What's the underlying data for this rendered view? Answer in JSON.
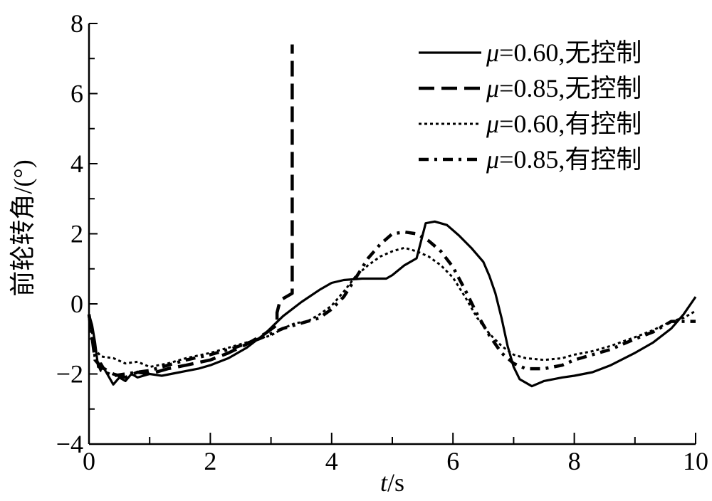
{
  "chart_data": {
    "type": "line",
    "title": "",
    "xlabel_var": "t",
    "xlabel_unit": "/s",
    "ylabel": "前轮转角/(°)",
    "xlim": [
      0,
      10
    ],
    "ylim": [
      -4,
      8
    ],
    "x_ticks": [
      0,
      2,
      4,
      6,
      8,
      10
    ],
    "y_ticks": [
      -4,
      -2,
      0,
      2,
      4,
      6,
      8
    ],
    "x_tick_labels": [
      "0",
      "2",
      "4",
      "6",
      "8",
      "10"
    ],
    "y_tick_labels": [
      "−4",
      "−2",
      "0",
      "2",
      "4",
      "6",
      "8"
    ],
    "grid": false,
    "legend_position": "top-right",
    "series": [
      {
        "name_sym": "μ",
        "name_rest": "=0.60,无控制",
        "style": "solid",
        "points": [
          [
            0,
            -0.3
          ],
          [
            0.05,
            -0.6
          ],
          [
            0.1,
            -1.1
          ],
          [
            0.15,
            -1.8
          ],
          [
            0.2,
            -1.7
          ],
          [
            0.3,
            -2.0
          ],
          [
            0.4,
            -2.3
          ],
          [
            0.5,
            -2.1
          ],
          [
            0.6,
            -2.2
          ],
          [
            0.7,
            -2.0
          ],
          [
            0.8,
            -2.1
          ],
          [
            1.0,
            -2.0
          ],
          [
            1.2,
            -2.05
          ],
          [
            1.5,
            -1.95
          ],
          [
            1.8,
            -1.85
          ],
          [
            2.0,
            -1.75
          ],
          [
            2.3,
            -1.55
          ],
          [
            2.6,
            -1.25
          ],
          [
            2.9,
            -0.85
          ],
          [
            3.2,
            -0.35
          ],
          [
            3.5,
            0.05
          ],
          [
            3.8,
            0.4
          ],
          [
            4.0,
            0.6
          ],
          [
            4.2,
            0.68
          ],
          [
            4.5,
            0.72
          ],
          [
            4.9,
            0.72
          ],
          [
            5.0,
            0.82
          ],
          [
            5.2,
            1.1
          ],
          [
            5.4,
            1.3
          ],
          [
            5.55,
            2.3
          ],
          [
            5.7,
            2.35
          ],
          [
            5.9,
            2.25
          ],
          [
            6.1,
            1.95
          ],
          [
            6.3,
            1.6
          ],
          [
            6.5,
            1.2
          ],
          [
            6.6,
            0.8
          ],
          [
            6.7,
            0.3
          ],
          [
            6.8,
            -0.4
          ],
          [
            6.9,
            -1.2
          ],
          [
            7.0,
            -1.8
          ],
          [
            7.1,
            -2.15
          ],
          [
            7.3,
            -2.35
          ],
          [
            7.5,
            -2.2
          ],
          [
            7.8,
            -2.1
          ],
          [
            8.0,
            -2.05
          ],
          [
            8.3,
            -1.95
          ],
          [
            8.6,
            -1.75
          ],
          [
            9.0,
            -1.4
          ],
          [
            9.3,
            -1.1
          ],
          [
            9.6,
            -0.7
          ],
          [
            9.8,
            -0.3
          ],
          [
            10.0,
            0.2
          ]
        ]
      },
      {
        "name_sym": "μ",
        "name_rest": "=0.85,无控制",
        "style": "dashed",
        "points": [
          [
            0,
            -0.3
          ],
          [
            0.1,
            -1.6
          ],
          [
            0.2,
            -1.8
          ],
          [
            0.4,
            -2.0
          ],
          [
            0.6,
            -2.1
          ],
          [
            0.8,
            -1.95
          ],
          [
            1.0,
            -2.0
          ],
          [
            1.3,
            -1.85
          ],
          [
            1.6,
            -1.75
          ],
          [
            2.0,
            -1.6
          ],
          [
            2.3,
            -1.4
          ],
          [
            2.6,
            -1.15
          ],
          [
            2.9,
            -0.85
          ],
          [
            3.1,
            -0.6
          ],
          [
            3.1,
            -0.25
          ],
          [
            3.15,
            0.1
          ],
          [
            3.25,
            0.2
          ],
          [
            3.35,
            0.3
          ],
          [
            3.35,
            7.4
          ]
        ]
      },
      {
        "name_sym": "μ",
        "name_rest": "=0.60,有控制",
        "style": "dotted",
        "points": [
          [
            0,
            -0.3
          ],
          [
            0.1,
            -1.3
          ],
          [
            0.2,
            -1.5
          ],
          [
            0.4,
            -1.55
          ],
          [
            0.6,
            -1.7
          ],
          [
            0.8,
            -1.65
          ],
          [
            1.0,
            -1.8
          ],
          [
            1.3,
            -1.7
          ],
          [
            1.6,
            -1.55
          ],
          [
            2.0,
            -1.4
          ],
          [
            2.4,
            -1.2
          ],
          [
            2.8,
            -1.0
          ],
          [
            3.0,
            -0.9
          ],
          [
            3.2,
            -0.7
          ],
          [
            3.4,
            -0.55
          ],
          [
            3.6,
            -0.5
          ],
          [
            3.8,
            -0.3
          ],
          [
            4.0,
            -0.05
          ],
          [
            4.2,
            0.35
          ],
          [
            4.4,
            0.8
          ],
          [
            4.6,
            1.1
          ],
          [
            4.8,
            1.35
          ],
          [
            5.0,
            1.5
          ],
          [
            5.2,
            1.6
          ],
          [
            5.4,
            1.5
          ],
          [
            5.6,
            1.35
          ],
          [
            5.8,
            1.1
          ],
          [
            6.0,
            0.75
          ],
          [
            6.2,
            0.2
          ],
          [
            6.4,
            -0.4
          ],
          [
            6.6,
            -0.85
          ],
          [
            6.8,
            -1.2
          ],
          [
            7.0,
            -1.45
          ],
          [
            7.2,
            -1.55
          ],
          [
            7.5,
            -1.6
          ],
          [
            7.8,
            -1.55
          ],
          [
            8.0,
            -1.45
          ],
          [
            8.3,
            -1.35
          ],
          [
            8.6,
            -1.2
          ],
          [
            9.0,
            -0.95
          ],
          [
            9.3,
            -0.75
          ],
          [
            9.6,
            -0.5
          ],
          [
            9.8,
            -0.4
          ],
          [
            10.0,
            -0.2
          ]
        ]
      },
      {
        "name_sym": "μ",
        "name_rest": "=0.85,有控制",
        "style": "dashdot",
        "points": [
          [
            0,
            -0.3
          ],
          [
            0.1,
            -1.5
          ],
          [
            0.2,
            -1.9
          ],
          [
            0.4,
            -2.05
          ],
          [
            0.6,
            -2.0
          ],
          [
            0.8,
            -1.95
          ],
          [
            1.0,
            -1.9
          ],
          [
            1.3,
            -1.75
          ],
          [
            1.6,
            -1.6
          ],
          [
            2.0,
            -1.45
          ],
          [
            2.4,
            -1.25
          ],
          [
            2.8,
            -1.0
          ],
          [
            3.0,
            -0.85
          ],
          [
            3.2,
            -0.7
          ],
          [
            3.5,
            -0.55
          ],
          [
            3.8,
            -0.4
          ],
          [
            4.0,
            -0.15
          ],
          [
            4.2,
            0.2
          ],
          [
            4.4,
            0.75
          ],
          [
            4.6,
            1.3
          ],
          [
            4.8,
            1.7
          ],
          [
            5.0,
            2.0
          ],
          [
            5.2,
            2.05
          ],
          [
            5.4,
            2.0
          ],
          [
            5.6,
            1.8
          ],
          [
            5.8,
            1.5
          ],
          [
            6.0,
            1.05
          ],
          [
            6.2,
            0.4
          ],
          [
            6.4,
            -0.3
          ],
          [
            6.6,
            -0.9
          ],
          [
            6.8,
            -1.4
          ],
          [
            7.0,
            -1.7
          ],
          [
            7.2,
            -1.85
          ],
          [
            7.5,
            -1.85
          ],
          [
            7.8,
            -1.75
          ],
          [
            8.0,
            -1.6
          ],
          [
            8.3,
            -1.45
          ],
          [
            8.6,
            -1.3
          ],
          [
            9.0,
            -1.0
          ],
          [
            9.3,
            -0.8
          ],
          [
            9.6,
            -0.5
          ],
          [
            9.8,
            -0.5
          ],
          [
            10.0,
            -0.5
          ]
        ]
      }
    ]
  }
}
